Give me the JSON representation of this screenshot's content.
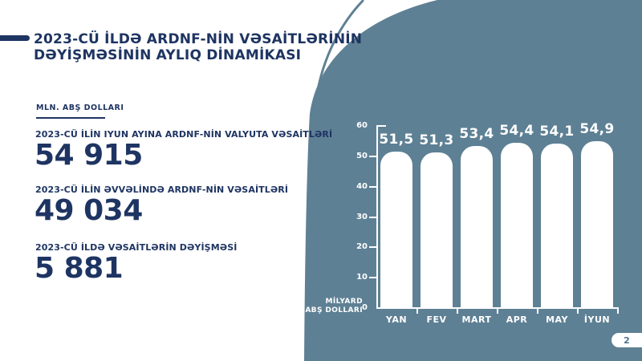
{
  "slide": {
    "title_line1": "2023-CÜ İLDƏ ARDNF-NİN VƏSAİTLƏRİNİN",
    "title_line2": "DƏYİŞMƏSİNİN AYLIQ DİNAMİKASI",
    "page_number": "2"
  },
  "left_panel": {
    "unit_label": "MLN. ABŞ DOLLARI",
    "stats": [
      {
        "label": "2023-CÜ İLİN IYUN AYINA ARDNF-NİN VALYUTA VƏSAİTLƏRİ",
        "value": "54 915"
      },
      {
        "label": "2023-CÜ İLİN ƏVVƏLİNDƏ ARDNF-NİN VƏSAİTLƏRİ",
        "value": "49 034"
      },
      {
        "label": "2023-CÜ İLDƏ VƏSAİTLƏRİN DƏYİŞMƏSİ",
        "value": "5 881"
      }
    ]
  },
  "colors": {
    "navy": "#1e3462",
    "slate": "#5e8094",
    "bar_white": "#ffffff",
    "pill_text": "#4f758c"
  },
  "chart_data": {
    "type": "bar",
    "categories": [
      "YAN",
      "FEV",
      "MART",
      "APR",
      "MAY",
      "İYUN"
    ],
    "values": [
      51.5,
      51.3,
      53.4,
      54.4,
      54.1,
      54.9
    ],
    "value_labels": [
      "51,5",
      "51,3",
      "53,4",
      "54,4",
      "54,1",
      "54,9"
    ],
    "title": "",
    "xlabel": "",
    "ylabel": "MİLYARD ABŞ DOLLARI",
    "ylabel_lines": [
      "MİLYARD",
      "ABŞ DOLLARI"
    ],
    "ylim": [
      0,
      60
    ],
    "yticks": [
      0,
      10,
      20,
      30,
      40,
      50,
      60
    ],
    "grid": false,
    "legend": "none",
    "bar_color": "#ffffff",
    "background_color": "#5e8094"
  }
}
